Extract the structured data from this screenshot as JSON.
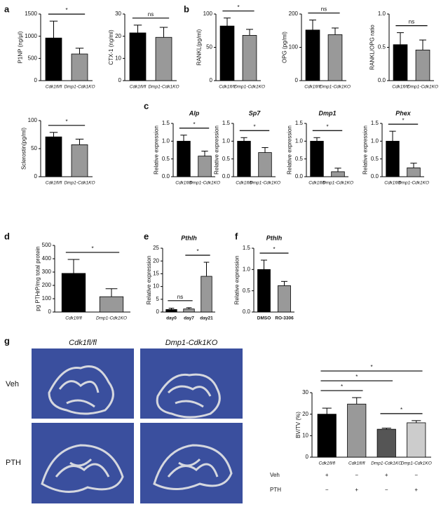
{
  "panel_labels": [
    "a",
    "b",
    "c",
    "d",
    "e",
    "f",
    "g"
  ],
  "microct": {
    "columns": [
      "Cdk1fl/fl",
      "Dmp1-Cdk1KO"
    ],
    "rows": [
      "Veh",
      "PTH"
    ]
  },
  "chart_data": [
    {
      "type": "bar",
      "ylabel": "P1NP (ng/μl)",
      "categories": [
        "Cdk1fl/fl",
        "Dmp1-Cdk1KO"
      ],
      "values": [
        960,
        600
      ],
      "errors": [
        380,
        130
      ],
      "colors": [
        "#000000",
        "#999999"
      ],
      "ylim": [
        0,
        1500
      ],
      "yticks": [
        0,
        500,
        1000,
        1500
      ],
      "annotations": [
        {
          "text": "*",
          "from": 0,
          "to": 1
        }
      ]
    },
    {
      "type": "bar",
      "ylabel": "CTX-1 (ng/ml)",
      "categories": [
        "Cdk1fl/fl",
        "Dmp1-Cdk1KO"
      ],
      "values": [
        21.5,
        19.5
      ],
      "errors": [
        3.5,
        4.5
      ],
      "colors": [
        "#000000",
        "#999999"
      ],
      "ylim": [
        0,
        30
      ],
      "yticks": [
        0,
        10,
        20,
        30
      ],
      "annotations": [
        {
          "text": "ns",
          "from": 0,
          "to": 1
        }
      ]
    },
    {
      "type": "bar",
      "ylabel": "RANKL(pg/ml)",
      "categories": [
        "Cdk1fl/fl",
        "Dmp1-Cdk1KO"
      ],
      "values": [
        82,
        68
      ],
      "errors": [
        12,
        9
      ],
      "colors": [
        "#000000",
        "#999999"
      ],
      "ylim": [
        0,
        100
      ],
      "yticks": [
        0,
        50,
        100
      ],
      "annotations": [
        {
          "text": "*",
          "from": 0,
          "to": 1
        }
      ]
    },
    {
      "type": "bar",
      "ylabel": "OPG (pg/ml)",
      "categories": [
        "Cdk1fl/fl",
        "Dmp1-Cdk1KO"
      ],
      "values": [
        152,
        138
      ],
      "errors": [
        30,
        20
      ],
      "colors": [
        "#000000",
        "#999999"
      ],
      "ylim": [
        0,
        200
      ],
      "yticks": [
        0,
        100,
        200
      ],
      "annotations": [
        {
          "text": "ns",
          "from": 0,
          "to": 1
        }
      ]
    },
    {
      "type": "bar",
      "ylabel": "RANKL/OPG ratio",
      "categories": [
        "Cdk1fl/fl",
        "Dmp1-Cdk1KO"
      ],
      "values": [
        0.54,
        0.46
      ],
      "errors": [
        0.18,
        0.15
      ],
      "colors": [
        "#000000",
        "#999999"
      ],
      "ylim": [
        0,
        1
      ],
      "yticks": [
        {
          "value": 0,
          "label": "0.0"
        },
        0.5,
        {
          "value": 1,
          "label": "1.0"
        }
      ],
      "annotations": [
        {
          "text": "ns",
          "from": 0,
          "to": 1
        }
      ]
    },
    {
      "type": "bar",
      "ylabel": "Sclerostin(pg/ml)",
      "categories": [
        "Cdk1fl/fl",
        "Dmp1-Cdk1KO"
      ],
      "values": [
        71,
        57
      ],
      "errors": [
        8,
        10
      ],
      "colors": [
        "#000000",
        "#999999"
      ],
      "ylim": [
        0,
        100
      ],
      "yticks": [
        0,
        50,
        100
      ],
      "annotations": [
        {
          "text": "*",
          "from": 0,
          "to": 1
        }
      ]
    },
    {
      "type": "bar",
      "title": "Alp",
      "ylabel": "Relative expression",
      "categories": [
        "Cdk1fl/fl",
        "Dmp1-Cdk1KO"
      ],
      "values": [
        1.0,
        0.58
      ],
      "errors": [
        0.17,
        0.14
      ],
      "colors": [
        "#000000",
        "#999999"
      ],
      "ylim": [
        0,
        1.5
      ],
      "yticks": [
        {
          "value": 0,
          "label": "0.0"
        },
        0.5,
        {
          "value": 1,
          "label": "1.0"
        },
        1.5
      ],
      "annotations": [
        {
          "text": "*",
          "from": 0,
          "to": 1
        }
      ]
    },
    {
      "type": "bar",
      "title": "Sp7",
      "ylabel": "Relative expression",
      "categories": [
        "Cdk1fl/fl",
        "Dmp1-Cdk1KO"
      ],
      "values": [
        1.0,
        0.68
      ],
      "errors": [
        0.1,
        0.14
      ],
      "colors": [
        "#000000",
        "#999999"
      ],
      "ylim": [
        0,
        1.5
      ],
      "yticks": [
        {
          "value": 0,
          "label": "0.0"
        },
        0.5,
        {
          "value": 1,
          "label": "1.0"
        },
        1.5
      ],
      "annotations": [
        {
          "text": "*",
          "from": 0,
          "to": 1
        }
      ]
    },
    {
      "type": "bar",
      "title": "Dmp1",
      "ylabel": "Relative expression",
      "categories": [
        "Cdk1fl/fl",
        "Dmp1-Cdk1KO"
      ],
      "values": [
        1.0,
        0.14
      ],
      "errors": [
        0.1,
        0.1
      ],
      "colors": [
        "#000000",
        "#999999"
      ],
      "ylim": [
        0,
        1.5
      ],
      "yticks": [
        {
          "value": 0,
          "label": "0.0"
        },
        0.5,
        {
          "value": 1,
          "label": "1.0"
        },
        1.5
      ],
      "annotations": [
        {
          "text": "*",
          "from": 0,
          "to": 1
        }
      ]
    },
    {
      "type": "bar",
      "title": "Phex",
      "ylabel": "Relative expression",
      "categories": [
        "Cdk1fl/fl",
        "Dmp1-Cdk1KO"
      ],
      "values": [
        1.0,
        0.25
      ],
      "errors": [
        0.28,
        0.13
      ],
      "colors": [
        "#000000",
        "#999999"
      ],
      "ylim": [
        0,
        1.5
      ],
      "yticks": [
        {
          "value": 0,
          "label": "0.0"
        },
        0.5,
        {
          "value": 1,
          "label": "1.0"
        },
        1.5
      ],
      "annotations": [
        {
          "text": "*",
          "from": 0,
          "to": 1
        }
      ]
    },
    {
      "type": "bar",
      "ylabel": "pg PTHrP/mg total protein",
      "categories": [
        "Cdk1fl/fl",
        "Dmp1-Cdk1KO"
      ],
      "values": [
        290,
        115
      ],
      "errors": [
        105,
        60
      ],
      "colors": [
        "#000000",
        "#999999"
      ],
      "ylim": [
        0,
        500
      ],
      "yticks": [
        0,
        100,
        200,
        300,
        400,
        500
      ],
      "annotations": [
        {
          "text": "*",
          "from": 0,
          "to": 1
        }
      ]
    },
    {
      "type": "bar",
      "title": "Pthlh",
      "ylabel": "Relative expression",
      "categories": [
        "day0",
        "day7",
        "day21"
      ],
      "values": [
        1.0,
        1.2,
        14
      ],
      "errors": [
        0.5,
        0.5,
        5.5
      ],
      "colors": [
        "#000000",
        "#999999",
        "#999999"
      ],
      "ylim": [
        0,
        25
      ],
      "yticks": [
        0,
        5,
        10,
        15,
        20,
        25
      ],
      "annotations": [
        {
          "text": "ns",
          "from": 0,
          "to": 1
        },
        {
          "text": "*",
          "from": 1,
          "to": 2
        }
      ]
    },
    {
      "type": "bar",
      "title": "Pthlh",
      "ylabel": "Relative expression",
      "categories": [
        "DMSO",
        "RO-3306"
      ],
      "values": [
        1.0,
        0.62
      ],
      "errors": [
        0.22,
        0.1
      ],
      "colors": [
        "#000000",
        "#999999"
      ],
      "ylim": [
        0,
        1.5
      ],
      "yticks": [
        {
          "value": 0,
          "label": "0.0"
        },
        0.5,
        {
          "value": 1,
          "label": "1.0"
        },
        1.5
      ],
      "annotations": [
        {
          "text": "*",
          "from": 0,
          "to": 1
        }
      ]
    },
    {
      "type": "bar",
      "ylabel": "BV/TV (%)",
      "categories": [
        "Cdk1fl/fl",
        "Cdk1fl/fl",
        "Dmp1-Cdk1KO",
        "Dmp1-Cdk1KO"
      ],
      "values": [
        20,
        24.7,
        13,
        16
      ],
      "errors": [
        2.8,
        3,
        0.5,
        1
      ],
      "colors": [
        "#000000",
        "#999999",
        "#555555",
        "#cccccc"
      ],
      "ylim": [
        0,
        30
      ],
      "yticks": [
        0,
        10,
        20,
        30
      ],
      "annotations": [
        {
          "text": "*",
          "from": 0,
          "to": 1
        },
        {
          "text": "*",
          "from": 2,
          "to": 3
        },
        {
          "text": "*",
          "from": 0,
          "to": 2
        },
        {
          "text": "*",
          "from": 0,
          "to": 3
        }
      ],
      "treatment_rows": [
        {
          "label": "Veh",
          "marks": [
            "+",
            "−",
            "+",
            "−"
          ]
        },
        {
          "label": "PTH",
          "marks": [
            "−",
            "+",
            "−",
            "+"
          ]
        }
      ]
    }
  ]
}
